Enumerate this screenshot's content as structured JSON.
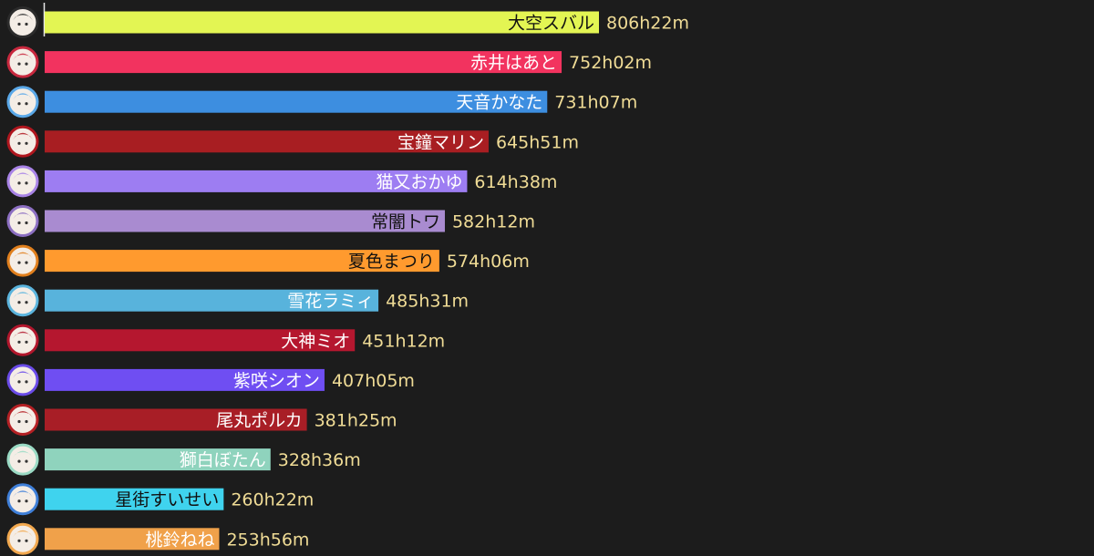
{
  "chart_data": {
    "type": "bar",
    "orientation": "horizontal",
    "unit": "minutes",
    "grid": false,
    "legend": "none",
    "series": [
      {
        "name": "大空スバル",
        "value": 48382,
        "value_label": "806h22m",
        "color": "#e3f553",
        "label_color": "#111111",
        "avatar_ring": "#2b2b2b"
      },
      {
        "name": "赤井はあと",
        "value": 45122,
        "value_label": "752h02m",
        "color": "#f2335f",
        "label_color": "#ffffff",
        "avatar_ring": "#c8283e"
      },
      {
        "name": "天音かなた",
        "value": 43867,
        "value_label": "731h07m",
        "color": "#3d8ee0",
        "label_color": "#ffffff",
        "avatar_ring": "#5aa8e8"
      },
      {
        "name": "宝鐘マリン",
        "value": 38751,
        "value_label": "645h51m",
        "color": "#a81e22",
        "label_color": "#ffffff",
        "avatar_ring": "#b0161e"
      },
      {
        "name": "猫又おかゆ",
        "value": 36878,
        "value_label": "614h38m",
        "color": "#9d7df2",
        "label_color": "#ffffff",
        "avatar_ring": "#a883e6"
      },
      {
        "name": "常闇トワ",
        "value": 34932,
        "value_label": "582h12m",
        "color": "#a98bd0",
        "label_color": "#111111",
        "avatar_ring": "#8c6fc2"
      },
      {
        "name": "夏色まつり",
        "value": 34446,
        "value_label": "574h06m",
        "color": "#ff9a2e",
        "label_color": "#111111",
        "avatar_ring": "#e07f1d"
      },
      {
        "name": "雪花ラミィ",
        "value": 29131,
        "value_label": "485h31m",
        "color": "#58b3dc",
        "label_color": "#ffffff",
        "avatar_ring": "#5bb4dd"
      },
      {
        "name": "大神ミオ",
        "value": 27072,
        "value_label": "451h12m",
        "color": "#b5172f",
        "label_color": "#ffffff",
        "avatar_ring": "#b2162c"
      },
      {
        "name": "紫咲シオン",
        "value": 24425,
        "value_label": "407h05m",
        "color": "#6f4ef2",
        "label_color": "#ffffff",
        "avatar_ring": "#6a4be8"
      },
      {
        "name": "尾丸ポルカ",
        "value": 22885,
        "value_label": "381h25m",
        "color": "#a81e26",
        "label_color": "#ffffff",
        "avatar_ring": "#b52024"
      },
      {
        "name": "獅白ぼたん",
        "value": 19716,
        "value_label": "328h36m",
        "color": "#8fd3bd",
        "label_color": "#ffffff",
        "avatar_ring": "#9adac4"
      },
      {
        "name": "星街すいせい",
        "value": 15622,
        "value_label": "260h22m",
        "color": "#3fd3ee",
        "label_color": "#111111",
        "avatar_ring": "#3f7fd8"
      },
      {
        "name": "桃鈴ねね",
        "value": 15236,
        "value_label": "253h56m",
        "color": "#f0a14a",
        "label_color": "#ffffff",
        "avatar_ring": "#f2a84e"
      }
    ]
  }
}
